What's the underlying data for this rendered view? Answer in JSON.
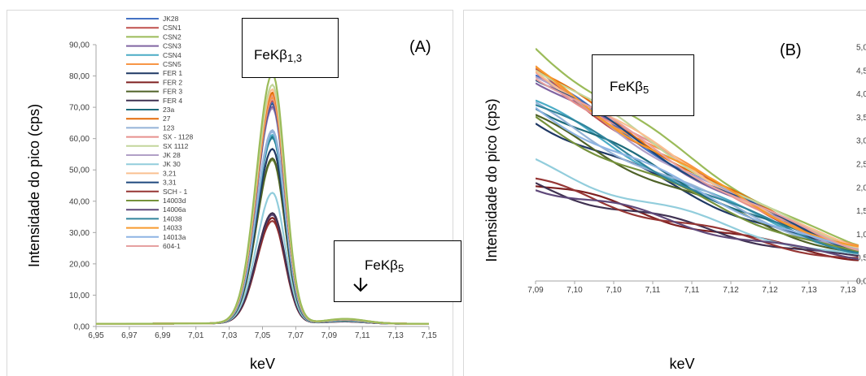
{
  "chart_data": [
    {
      "type": "line",
      "panel_label": "(A)",
      "xlabel": "keV",
      "ylabel": "Intensidade  do pico (cps)",
      "xlim": [
        6.95,
        7.15
      ],
      "ylim": [
        0,
        90
      ],
      "x_ticks": [
        "6,95",
        "6,97",
        "6,99",
        "7,01",
        "7,03",
        "7,05",
        "7,07",
        "7,09",
        "7,11",
        "7,13",
        "7,15"
      ],
      "y_ticks": [
        "0,00",
        "10,00",
        "20,00",
        "30,00",
        "40,00",
        "50,00",
        "60,00",
        "70,00",
        "80,00",
        "90,00"
      ],
      "grid": false,
      "legend_position": "top-left",
      "annotations": [
        {
          "text": "FeKβ",
          "sub": "1,3",
          "arrow": false
        },
        {
          "text": "FeKβ",
          "sub": "5",
          "arrow": true
        }
      ],
      "series": [
        {
          "name": "JK28",
          "color": "#4472C4",
          "peak": 70.5
        },
        {
          "name": "CSN1",
          "color": "#C0504D",
          "peak": 71.0
        },
        {
          "name": "CSN2",
          "color": "#9BBB59",
          "peak": 79.5
        },
        {
          "name": "CSN3",
          "color": "#8064A2",
          "peak": 69.0
        },
        {
          "name": "CSN4",
          "color": "#4BACC6",
          "peak": 60.0
        },
        {
          "name": "CSN5",
          "color": "#F79646",
          "peak": 73.0
        },
        {
          "name": "FER 1",
          "color": "#1F3864",
          "peak": 55.5
        },
        {
          "name": "FER 2",
          "color": "#7F2020",
          "peak": 33.5
        },
        {
          "name": "FER 3",
          "color": "#4F6228",
          "peak": 52.5
        },
        {
          "name": "FER 4",
          "color": "#3F3151",
          "peak": 35.0
        },
        {
          "name": "23a",
          "color": "#1F6C7C",
          "peak": 59.5
        },
        {
          "name": "27",
          "color": "#E36C0A",
          "peak": 73.5
        },
        {
          "name": "123",
          "color": "#95B3D7",
          "peak": 61.5
        },
        {
          "name": "SX - 1128",
          "color": "#E6908E",
          "peak": 72.5
        },
        {
          "name": "SX 1112",
          "color": "#C3D69B",
          "peak": 76.0
        },
        {
          "name": "JK 28",
          "color": "#B1A0C7",
          "peak": 68.5
        },
        {
          "name": "JK 30",
          "color": "#92CDDC",
          "peak": 41.5
        },
        {
          "name": "3,21",
          "color": "#FAC090",
          "peak": 74.5
        },
        {
          "name": "3,31",
          "color": "#1F497D",
          "peak": 70.0
        },
        {
          "name": "SCH - 1",
          "color": "#963634",
          "peak": 32.5
        },
        {
          "name": "14003d",
          "color": "#76923C",
          "peak": 52.0
        },
        {
          "name": "14006a",
          "color": "#5F497A",
          "peak": 34.5
        },
        {
          "name": "14038",
          "color": "#31859C",
          "peak": 59.0
        },
        {
          "name": "14033",
          "color": "#F79A2E",
          "peak": 72.0
        },
        {
          "name": "14013a",
          "color": "#8EB4E3",
          "peak": 61.0
        },
        {
          "name": "604-1",
          "color": "#E6A0A0",
          "peak": 71.5
        }
      ]
    },
    {
      "type": "line",
      "panel_label": "(B)",
      "xlabel": "keV",
      "ylabel": "Intensidade  do pico (cps)",
      "xlim": [
        7.09,
        7.135
      ],
      "ylim": [
        0,
        5
      ],
      "x_ticks": [
        "7,09",
        "7,10",
        "7,10",
        "7,11",
        "7,11",
        "7,12",
        "7,12",
        "7,13",
        "7,13"
      ],
      "y_ticks": [
        "0,0",
        "0,5",
        "1,0",
        "1,5",
        "2,0",
        "2,5",
        "3,0",
        "3,5",
        "4,0",
        "4,5",
        "5,0"
      ],
      "grid": false,
      "annotations": [
        {
          "text": "FeKβ",
          "sub": "5",
          "arrow": false
        }
      ]
    }
  ]
}
